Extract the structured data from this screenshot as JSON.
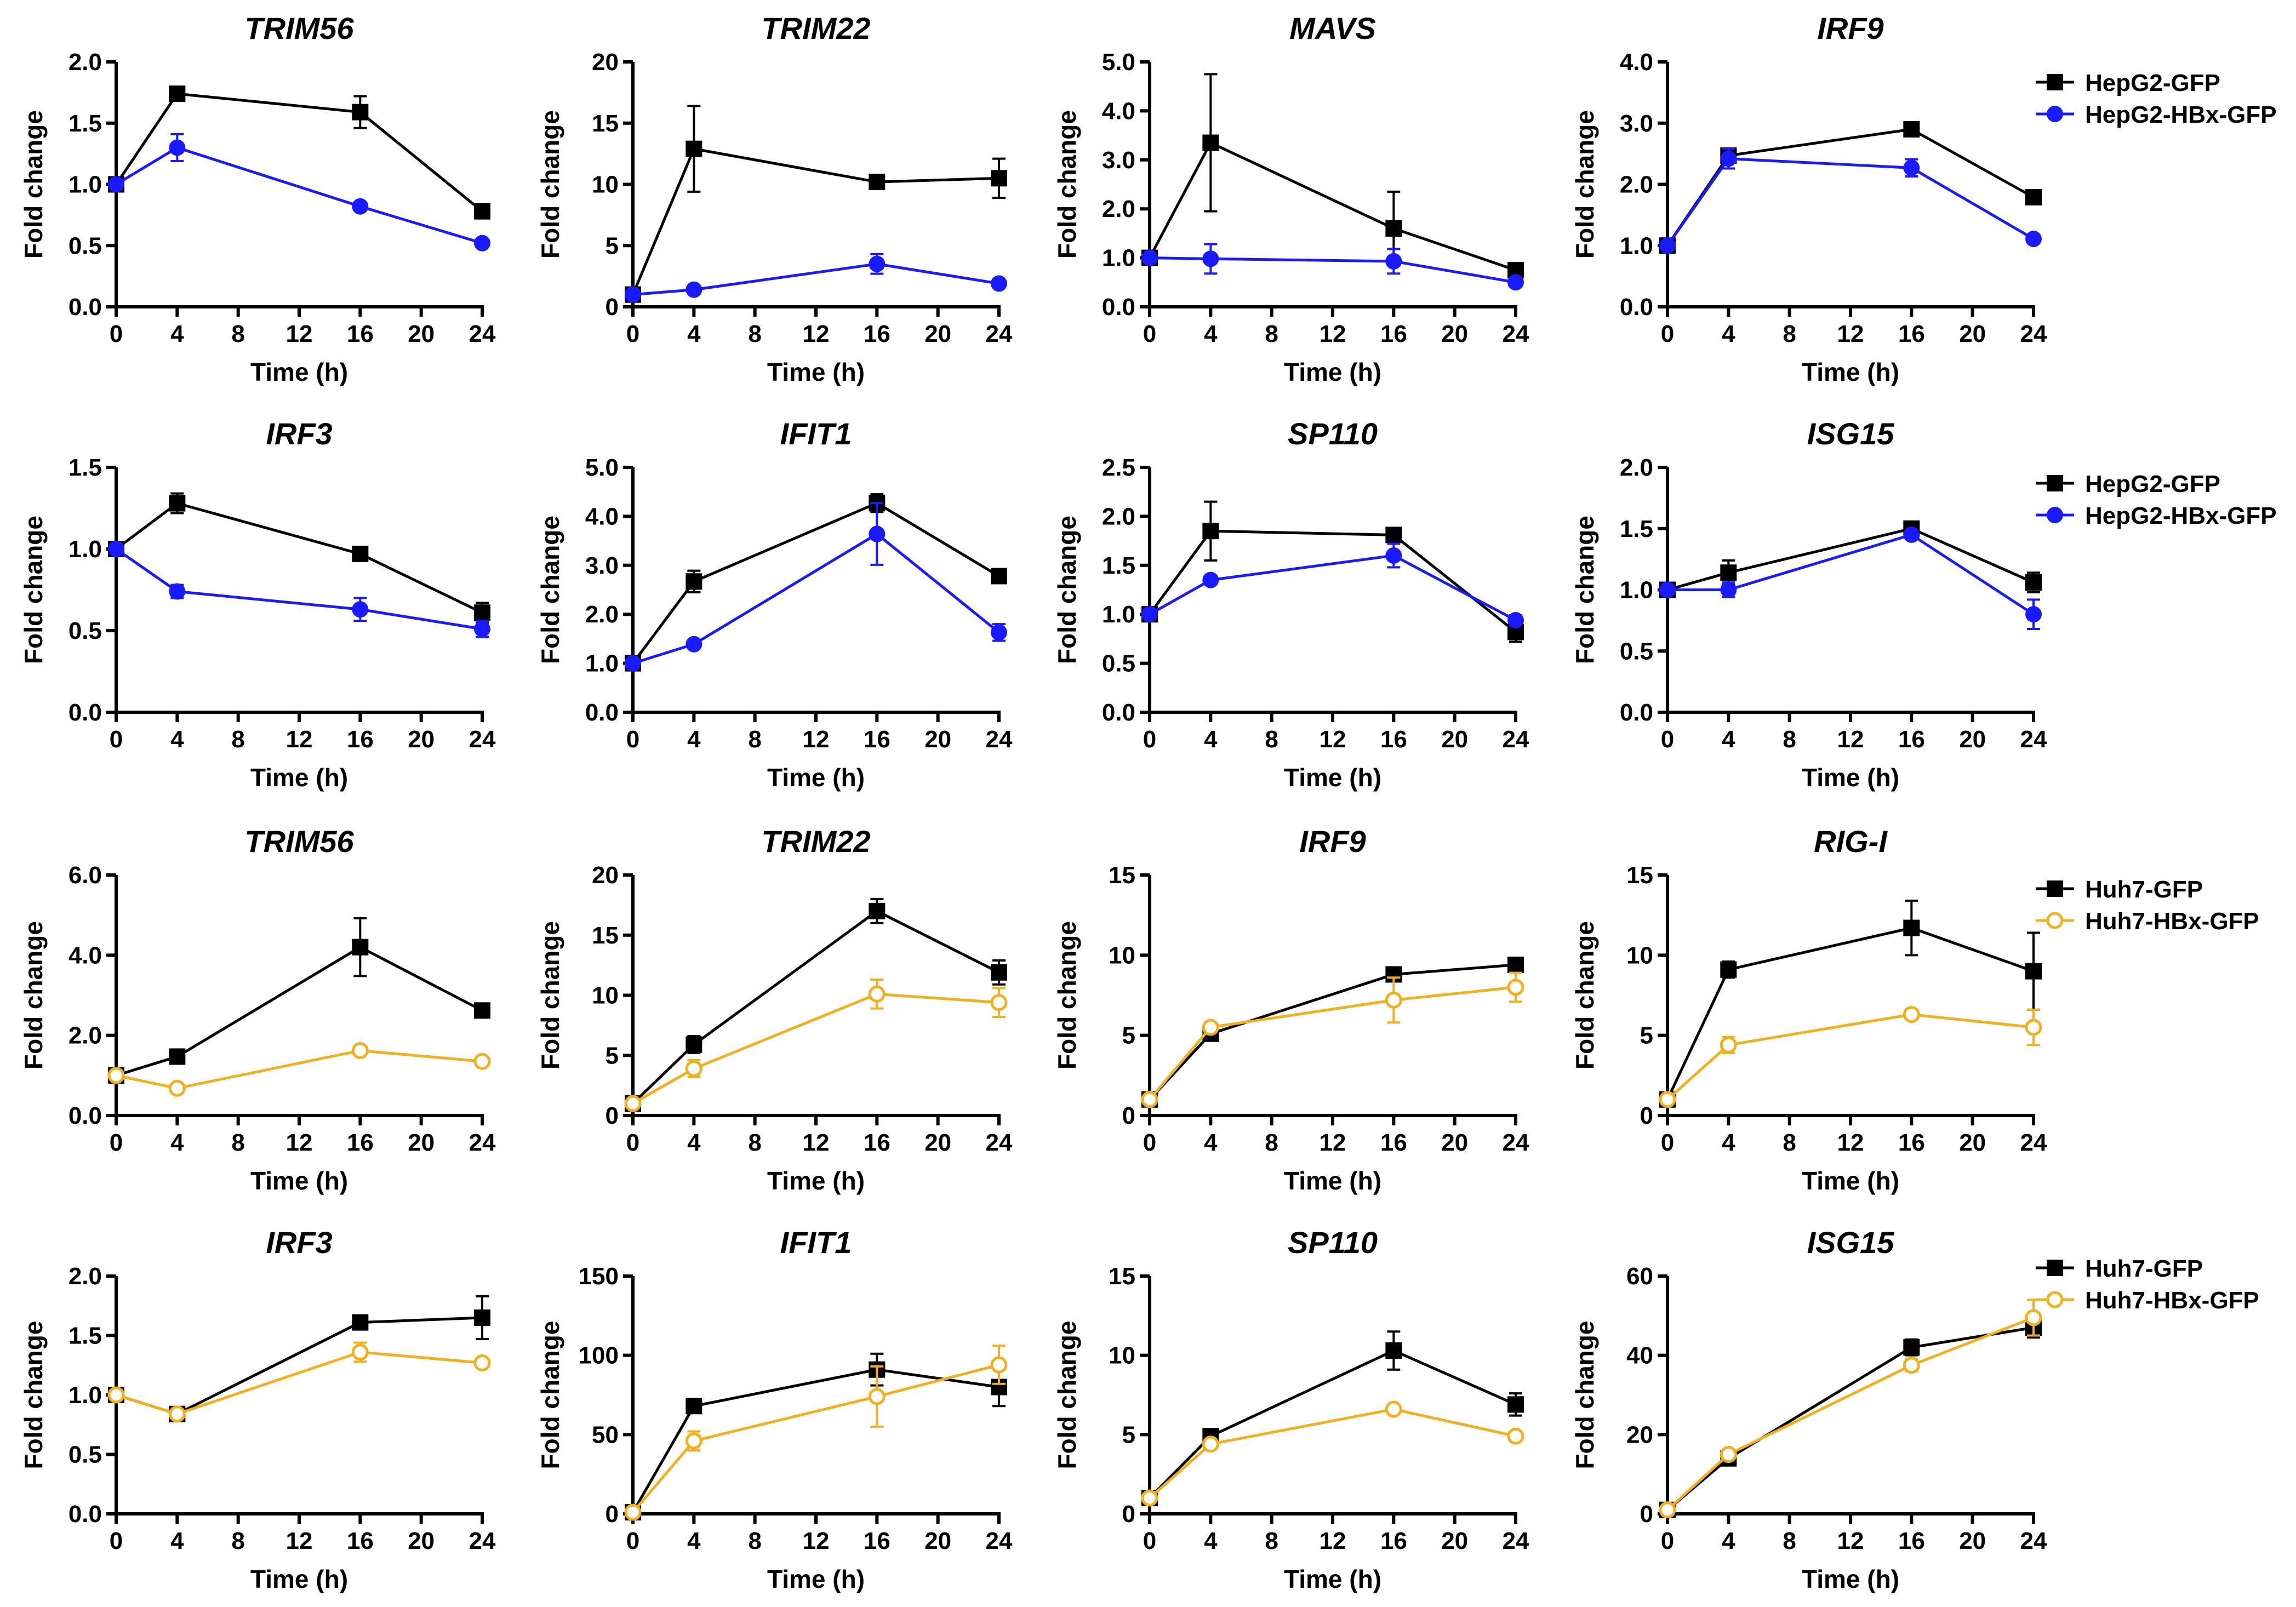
{
  "figure": {
    "series_styles": {
      "HepG2-GFP": {
        "color": "#000000",
        "marker": "square"
      },
      "HepG2-HBx-GFP": {
        "color": "#1a1aff",
        "marker": "circle"
      },
      "Huh7-GFP": {
        "color": "#000000",
        "marker": "square"
      },
      "Huh7-HBx-GFP": {
        "color": "#f2b01e",
        "marker": "open-circle"
      }
    },
    "legends": [
      {
        "row": 0,
        "entries": [
          "HepG2-GFP",
          "HepG2-HBx-GFP"
        ]
      },
      {
        "row": 1,
        "entries": [
          "HepG2-GFP",
          "HepG2-HBx-GFP"
        ]
      },
      {
        "row": 2,
        "entries": [
          "Huh7-GFP",
          "Huh7-HBx-GFP"
        ]
      },
      {
        "row": 3,
        "entries": [
          "Huh7-GFP",
          "Huh7-HBx-GFP"
        ]
      }
    ]
  },
  "chart_data": [
    {
      "type": "line",
      "title": "TRIM56",
      "xlabel": "Time (h)",
      "ylabel": "Fold change",
      "x": [
        0,
        4,
        16,
        24
      ],
      "xticks": [
        "0",
        "4",
        "8",
        "12",
        "16",
        "20",
        "24"
      ],
      "ylim": [
        0,
        2
      ],
      "yticks": [
        "0.0",
        "0.5",
        "1.0",
        "1.5",
        "2.0"
      ],
      "series": [
        {
          "name": "HepG2-GFP",
          "values": [
            1.0,
            1.74,
            1.59,
            0.78
          ],
          "errors": [
            0,
            0.02,
            0.13,
            0.03
          ]
        },
        {
          "name": "HepG2-HBx-GFP",
          "values": [
            1.0,
            1.3,
            0.82,
            0.52
          ],
          "errors": [
            0,
            0.11,
            0.02,
            0.02
          ]
        }
      ]
    },
    {
      "type": "line",
      "title": "TRIM22",
      "xlabel": "Time (h)",
      "ylabel": "Fold change",
      "x": [
        0,
        4,
        16,
        24
      ],
      "xticks": [
        "0",
        "4",
        "8",
        "12",
        "16",
        "20",
        "24"
      ],
      "ylim": [
        0,
        20
      ],
      "yticks": [
        "0",
        "5",
        "10",
        "15",
        "20"
      ],
      "series": [
        {
          "name": "HepG2-GFP",
          "values": [
            1.0,
            12.9,
            10.2,
            10.5
          ],
          "errors": [
            0,
            3.5,
            0.3,
            1.6
          ]
        },
        {
          "name": "HepG2-HBx-GFP",
          "values": [
            1.0,
            1.4,
            3.5,
            1.9
          ],
          "errors": [
            0,
            0.1,
            0.8,
            0.2
          ]
        }
      ]
    },
    {
      "type": "line",
      "title": "MAVS",
      "xlabel": "Time (h)",
      "ylabel": "Fold change",
      "x": [
        0,
        4,
        16,
        24
      ],
      "xticks": [
        "0",
        "4",
        "8",
        "12",
        "16",
        "20",
        "24"
      ],
      "ylim": [
        0,
        5
      ],
      "yticks": [
        "0.0",
        "1.0",
        "2.0",
        "3.0",
        "4.0",
        "5.0"
      ],
      "series": [
        {
          "name": "HepG2-GFP",
          "values": [
            1.0,
            3.35,
            1.6,
            0.75
          ],
          "errors": [
            0,
            1.4,
            0.75,
            0.08
          ]
        },
        {
          "name": "HepG2-HBx-GFP",
          "values": [
            1.0,
            0.98,
            0.93,
            0.5
          ],
          "errors": [
            0,
            0.3,
            0.25,
            0.08
          ]
        }
      ]
    },
    {
      "type": "line",
      "title": "IRF9",
      "xlabel": "Time (h)",
      "ylabel": "Fold change",
      "x": [
        0,
        4,
        16,
        24
      ],
      "xticks": [
        "0",
        "4",
        "8",
        "12",
        "16",
        "20",
        "24"
      ],
      "ylim": [
        0,
        4
      ],
      "yticks": [
        "0.0",
        "1.0",
        "2.0",
        "3.0",
        "4.0"
      ],
      "series": [
        {
          "name": "HepG2-GFP",
          "values": [
            1.0,
            2.47,
            2.9,
            1.79
          ],
          "errors": [
            0,
            0.1,
            0.05,
            0.05
          ]
        },
        {
          "name": "HepG2-HBx-GFP",
          "values": [
            1.0,
            2.42,
            2.27,
            1.11
          ],
          "errors": [
            0,
            0.16,
            0.14,
            0.04
          ]
        }
      ]
    },
    {
      "type": "line",
      "title": "IRF3",
      "xlabel": "Time (h)",
      "ylabel": "Fold change",
      "x": [
        0,
        4,
        16,
        24
      ],
      "xticks": [
        "0",
        "4",
        "8",
        "12",
        "16",
        "20",
        "24"
      ],
      "ylim": [
        0,
        1.5
      ],
      "yticks": [
        "0.0",
        "0.5",
        "1.0",
        "1.5"
      ],
      "series": [
        {
          "name": "HepG2-GFP",
          "values": [
            1.0,
            1.28,
            0.97,
            0.61
          ],
          "errors": [
            0,
            0.06,
            0.02,
            0.06
          ]
        },
        {
          "name": "HepG2-HBx-GFP",
          "values": [
            1.0,
            0.74,
            0.63,
            0.51
          ],
          "errors": [
            0,
            0.04,
            0.07,
            0.05
          ]
        }
      ]
    },
    {
      "type": "line",
      "title": "IFIT1",
      "xlabel": "Time (h)",
      "ylabel": "Fold change",
      "x": [
        0,
        4,
        16,
        24
      ],
      "xticks": [
        "0",
        "4",
        "8",
        "12",
        "16",
        "20",
        "24"
      ],
      "ylim": [
        0,
        5
      ],
      "yticks": [
        "0.0",
        "1.0",
        "2.0",
        "3.0",
        "4.0",
        "5.0"
      ],
      "series": [
        {
          "name": "HepG2-GFP",
          "values": [
            1.0,
            2.67,
            4.27,
            2.78
          ],
          "errors": [
            0,
            0.22,
            0.18,
            0.05
          ]
        },
        {
          "name": "HepG2-HBx-GFP",
          "values": [
            1.0,
            1.39,
            3.64,
            1.63
          ],
          "errors": [
            0,
            0.05,
            0.63,
            0.17
          ]
        }
      ]
    },
    {
      "type": "line",
      "title": "SP110",
      "xlabel": "Time (h)",
      "ylabel": "Fold change",
      "x": [
        0,
        4,
        16,
        24
      ],
      "xticks": [
        "0",
        "4",
        "8",
        "12",
        "16",
        "20",
        "24"
      ],
      "ylim": [
        0,
        2.5
      ],
      "yticks": [
        "0.0",
        "0.5",
        "1.0",
        "1.5",
        "2.0",
        "2.5"
      ],
      "series": [
        {
          "name": "HepG2-GFP",
          "values": [
            1.0,
            1.85,
            1.81,
            0.82
          ],
          "errors": [
            0,
            0.3,
            0.05,
            0.1
          ]
        },
        {
          "name": "HepG2-HBx-GFP",
          "values": [
            1.0,
            1.35,
            1.6,
            0.94
          ],
          "errors": [
            0,
            0.02,
            0.12,
            0.05
          ]
        }
      ]
    },
    {
      "type": "line",
      "title": "ISG15",
      "xlabel": "Time (h)",
      "ylabel": "Fold change",
      "x": [
        0,
        4,
        16,
        24
      ],
      "xticks": [
        "0",
        "4",
        "8",
        "12",
        "16",
        "20",
        "24"
      ],
      "ylim": [
        0,
        2
      ],
      "yticks": [
        "0.0",
        "0.5",
        "1.0",
        "1.5",
        "2.0"
      ],
      "series": [
        {
          "name": "HepG2-GFP",
          "values": [
            1.0,
            1.14,
            1.5,
            1.06
          ],
          "errors": [
            0,
            0.1,
            0.03,
            0.08
          ]
        },
        {
          "name": "HepG2-HBx-GFP",
          "values": [
            1.0,
            1.0,
            1.45,
            0.8
          ],
          "errors": [
            0,
            0.06,
            0.03,
            0.12
          ]
        }
      ]
    },
    {
      "type": "line",
      "title": "TRIM56",
      "xlabel": "Time (h)",
      "ylabel": "Fold change",
      "x": [
        0,
        4,
        16,
        24
      ],
      "xticks": [
        "0",
        "4",
        "8",
        "12",
        "16",
        "20",
        "24"
      ],
      "ylim": [
        0,
        6
      ],
      "yticks": [
        "0.0",
        "2.0",
        "4.0",
        "6.0"
      ],
      "series": [
        {
          "name": "Huh7-GFP",
          "values": [
            1.0,
            1.47,
            4.2,
            2.62
          ],
          "errors": [
            0,
            0.05,
            0.72,
            0.08
          ]
        },
        {
          "name": "Huh7-HBx-GFP",
          "values": [
            1.0,
            0.68,
            1.62,
            1.35
          ],
          "errors": [
            0,
            0.04,
            0.06,
            0.04
          ]
        }
      ]
    },
    {
      "type": "line",
      "title": "TRIM22",
      "xlabel": "Time (h)",
      "ylabel": "Fold change",
      "x": [
        0,
        4,
        16,
        24
      ],
      "xticks": [
        "0",
        "4",
        "8",
        "12",
        "16",
        "20",
        "24"
      ],
      "ylim": [
        0,
        20
      ],
      "yticks": [
        "0",
        "5",
        "10",
        "15",
        "20"
      ],
      "series": [
        {
          "name": "Huh7-GFP",
          "values": [
            1.0,
            5.9,
            17.0,
            11.9
          ],
          "errors": [
            0,
            0.7,
            1.0,
            1.0
          ]
        },
        {
          "name": "Huh7-HBx-GFP",
          "values": [
            1.0,
            3.9,
            10.1,
            9.4
          ],
          "errors": [
            0,
            0.7,
            1.2,
            1.2
          ]
        }
      ]
    },
    {
      "type": "line",
      "title": "IRF9",
      "xlabel": "Time (h)",
      "ylabel": "Fold change",
      "x": [
        0,
        4,
        16,
        24
      ],
      "xticks": [
        "0",
        "4",
        "8",
        "12",
        "16",
        "20",
        "24"
      ],
      "ylim": [
        0,
        15
      ],
      "yticks": [
        "0",
        "5",
        "10",
        "15"
      ],
      "series": [
        {
          "name": "Huh7-GFP",
          "values": [
            1.0,
            5.1,
            8.8,
            9.4
          ],
          "errors": [
            0,
            0.2,
            0.3,
            0.4
          ]
        },
        {
          "name": "Huh7-HBx-GFP",
          "values": [
            1.0,
            5.5,
            7.2,
            8.0
          ],
          "errors": [
            0,
            0.2,
            1.4,
            0.9
          ]
        }
      ]
    },
    {
      "type": "line",
      "title": "RIG-I",
      "xlabel": "Time (h)",
      "ylabel": "Fold change",
      "x": [
        0,
        4,
        16,
        24
      ],
      "xticks": [
        "0",
        "4",
        "8",
        "12",
        "16",
        "20",
        "24"
      ],
      "ylim": [
        0,
        15
      ],
      "yticks": [
        "0",
        "5",
        "10",
        "15"
      ],
      "series": [
        {
          "name": "Huh7-GFP",
          "values": [
            1.0,
            9.1,
            11.7,
            9.0
          ],
          "errors": [
            0,
            0.5,
            1.7,
            2.4
          ]
        },
        {
          "name": "Huh7-HBx-GFP",
          "values": [
            1.0,
            4.4,
            6.3,
            5.5
          ],
          "errors": [
            0,
            0.5,
            0.2,
            1.1
          ]
        }
      ]
    },
    {
      "type": "line",
      "title": "IRF3",
      "xlabel": "Time (h)",
      "ylabel": "Fold change",
      "x": [
        0,
        4,
        16,
        24
      ],
      "xticks": [
        "0",
        "4",
        "8",
        "12",
        "16",
        "20",
        "24"
      ],
      "ylim": [
        0,
        2
      ],
      "yticks": [
        "0.0",
        "0.5",
        "1.0",
        "1.5",
        "2.0"
      ],
      "series": [
        {
          "name": "Huh7-GFP",
          "values": [
            1.0,
            0.84,
            1.61,
            1.65
          ],
          "errors": [
            0,
            0.03,
            0.02,
            0.18
          ]
        },
        {
          "name": "Huh7-HBx-GFP",
          "values": [
            1.0,
            0.84,
            1.36,
            1.27
          ],
          "errors": [
            0,
            0.03,
            0.08,
            0.02
          ]
        }
      ]
    },
    {
      "type": "line",
      "title": "IFIT1",
      "xlabel": "Time (h)",
      "ylabel": "Fold change",
      "x": [
        0,
        4,
        16,
        24
      ],
      "xticks": [
        "0",
        "4",
        "8",
        "12",
        "16",
        "20",
        "24"
      ],
      "ylim": [
        0,
        150
      ],
      "yticks": [
        "0",
        "50",
        "100",
        "150"
      ],
      "series": [
        {
          "name": "Huh7-GFP",
          "values": [
            1.0,
            68,
            91,
            80
          ],
          "errors": [
            0,
            2,
            10,
            12
          ]
        },
        {
          "name": "Huh7-HBx-GFP",
          "values": [
            1.0,
            46,
            74,
            94
          ],
          "errors": [
            0,
            6,
            19,
            12
          ]
        }
      ]
    },
    {
      "type": "line",
      "title": "SP110",
      "xlabel": "Time (h)",
      "ylabel": "Fold change",
      "x": [
        0,
        4,
        16,
        24
      ],
      "xticks": [
        "0",
        "4",
        "8",
        "12",
        "16",
        "20",
        "24"
      ],
      "ylim": [
        0,
        15
      ],
      "yticks": [
        "0",
        "5",
        "10",
        "15"
      ],
      "series": [
        {
          "name": "Huh7-GFP",
          "values": [
            1.0,
            4.9,
            10.3,
            6.9
          ],
          "errors": [
            0,
            0.3,
            1.2,
            0.7
          ]
        },
        {
          "name": "Huh7-HBx-GFP",
          "values": [
            1.0,
            4.4,
            6.6,
            4.9
          ],
          "errors": [
            0,
            0.2,
            0.2,
            0.3
          ]
        }
      ]
    },
    {
      "type": "line",
      "title": "ISG15",
      "xlabel": "Time (h)",
      "ylabel": "Fold change",
      "x": [
        0,
        4,
        16,
        24
      ],
      "xticks": [
        "0",
        "4",
        "8",
        "12",
        "16",
        "20",
        "24"
      ],
      "ylim": [
        0,
        60
      ],
      "yticks": [
        "0",
        "20",
        "40",
        "60"
      ],
      "series": [
        {
          "name": "Huh7-GFP",
          "values": [
            1.0,
            14,
            42,
            47
          ],
          "errors": [
            0,
            0.5,
            2,
            2.5
          ]
        },
        {
          "name": "Huh7-HBx-GFP",
          "values": [
            1.0,
            15,
            37.5,
            49.5
          ],
          "errors": [
            0,
            0.8,
            1.5,
            4.5
          ]
        }
      ]
    }
  ]
}
